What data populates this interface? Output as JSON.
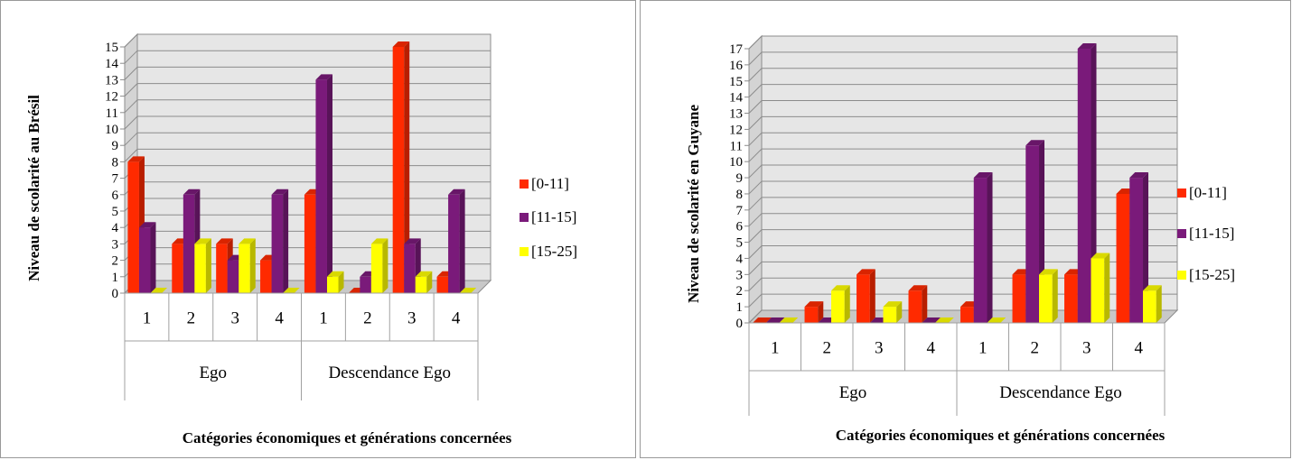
{
  "chart_data": [
    {
      "type": "bar",
      "title": "",
      "ylabel": "Niveau de scolarité au Brésil",
      "xlabel": "Catégories économiques et générations concernées",
      "groups": [
        {
          "label": "Ego",
          "categories": [
            "1",
            "2",
            "3",
            "4"
          ]
        },
        {
          "label": "Descendance Ego",
          "categories": [
            "1",
            "2",
            "3",
            "4"
          ]
        }
      ],
      "ylim": [
        0,
        15
      ],
      "yticks": [
        "0",
        "1",
        "2",
        "3",
        "4",
        "5",
        "6",
        "7",
        "8",
        "9",
        "10",
        "11",
        "12",
        "13",
        "14",
        "15"
      ],
      "grid": true,
      "legend": "right",
      "series": [
        {
          "name": "[0-11]",
          "color": "#ff2a00",
          "values": [
            8,
            3,
            3,
            2,
            6,
            0,
            15,
            1
          ]
        },
        {
          "name": "[11-15]",
          "color": "#7a1a7a",
          "values": [
            4,
            6,
            2,
            6,
            13,
            1,
            3,
            6
          ]
        },
        {
          "name": "[15-25]",
          "color": "#ffff00",
          "values": [
            0,
            3,
            3,
            0,
            1,
            3,
            1,
            0
          ]
        }
      ]
    },
    {
      "type": "bar",
      "title": "",
      "ylabel": "Niveau de scolarité en Guyane",
      "xlabel": "Catégories économiques et générations concernées",
      "groups": [
        {
          "label": "Ego",
          "categories": [
            "1",
            "2",
            "3",
            "4"
          ]
        },
        {
          "label": "Descendance Ego",
          "categories": [
            "1",
            "2",
            "3",
            "4"
          ]
        }
      ],
      "ylim": [
        0,
        17
      ],
      "yticks": [
        "0",
        "1",
        "2",
        "3",
        "4",
        "5",
        "6",
        "7",
        "8",
        "9",
        "10",
        "11",
        "12",
        "13",
        "14",
        "15",
        "16",
        "17"
      ],
      "grid": true,
      "legend": "right",
      "series": [
        {
          "name": "[0-11]",
          "color": "#ff2a00",
          "values": [
            0,
            1,
            3,
            2,
            1,
            3,
            3,
            8
          ]
        },
        {
          "name": "[11-15]",
          "color": "#7a1a7a",
          "values": [
            0,
            0,
            0,
            0,
            9,
            11,
            17,
            9
          ]
        },
        {
          "name": "[15-25]",
          "color": "#ffff00",
          "values": [
            0,
            2,
            1,
            0,
            0,
            3,
            4,
            2
          ]
        }
      ]
    }
  ]
}
